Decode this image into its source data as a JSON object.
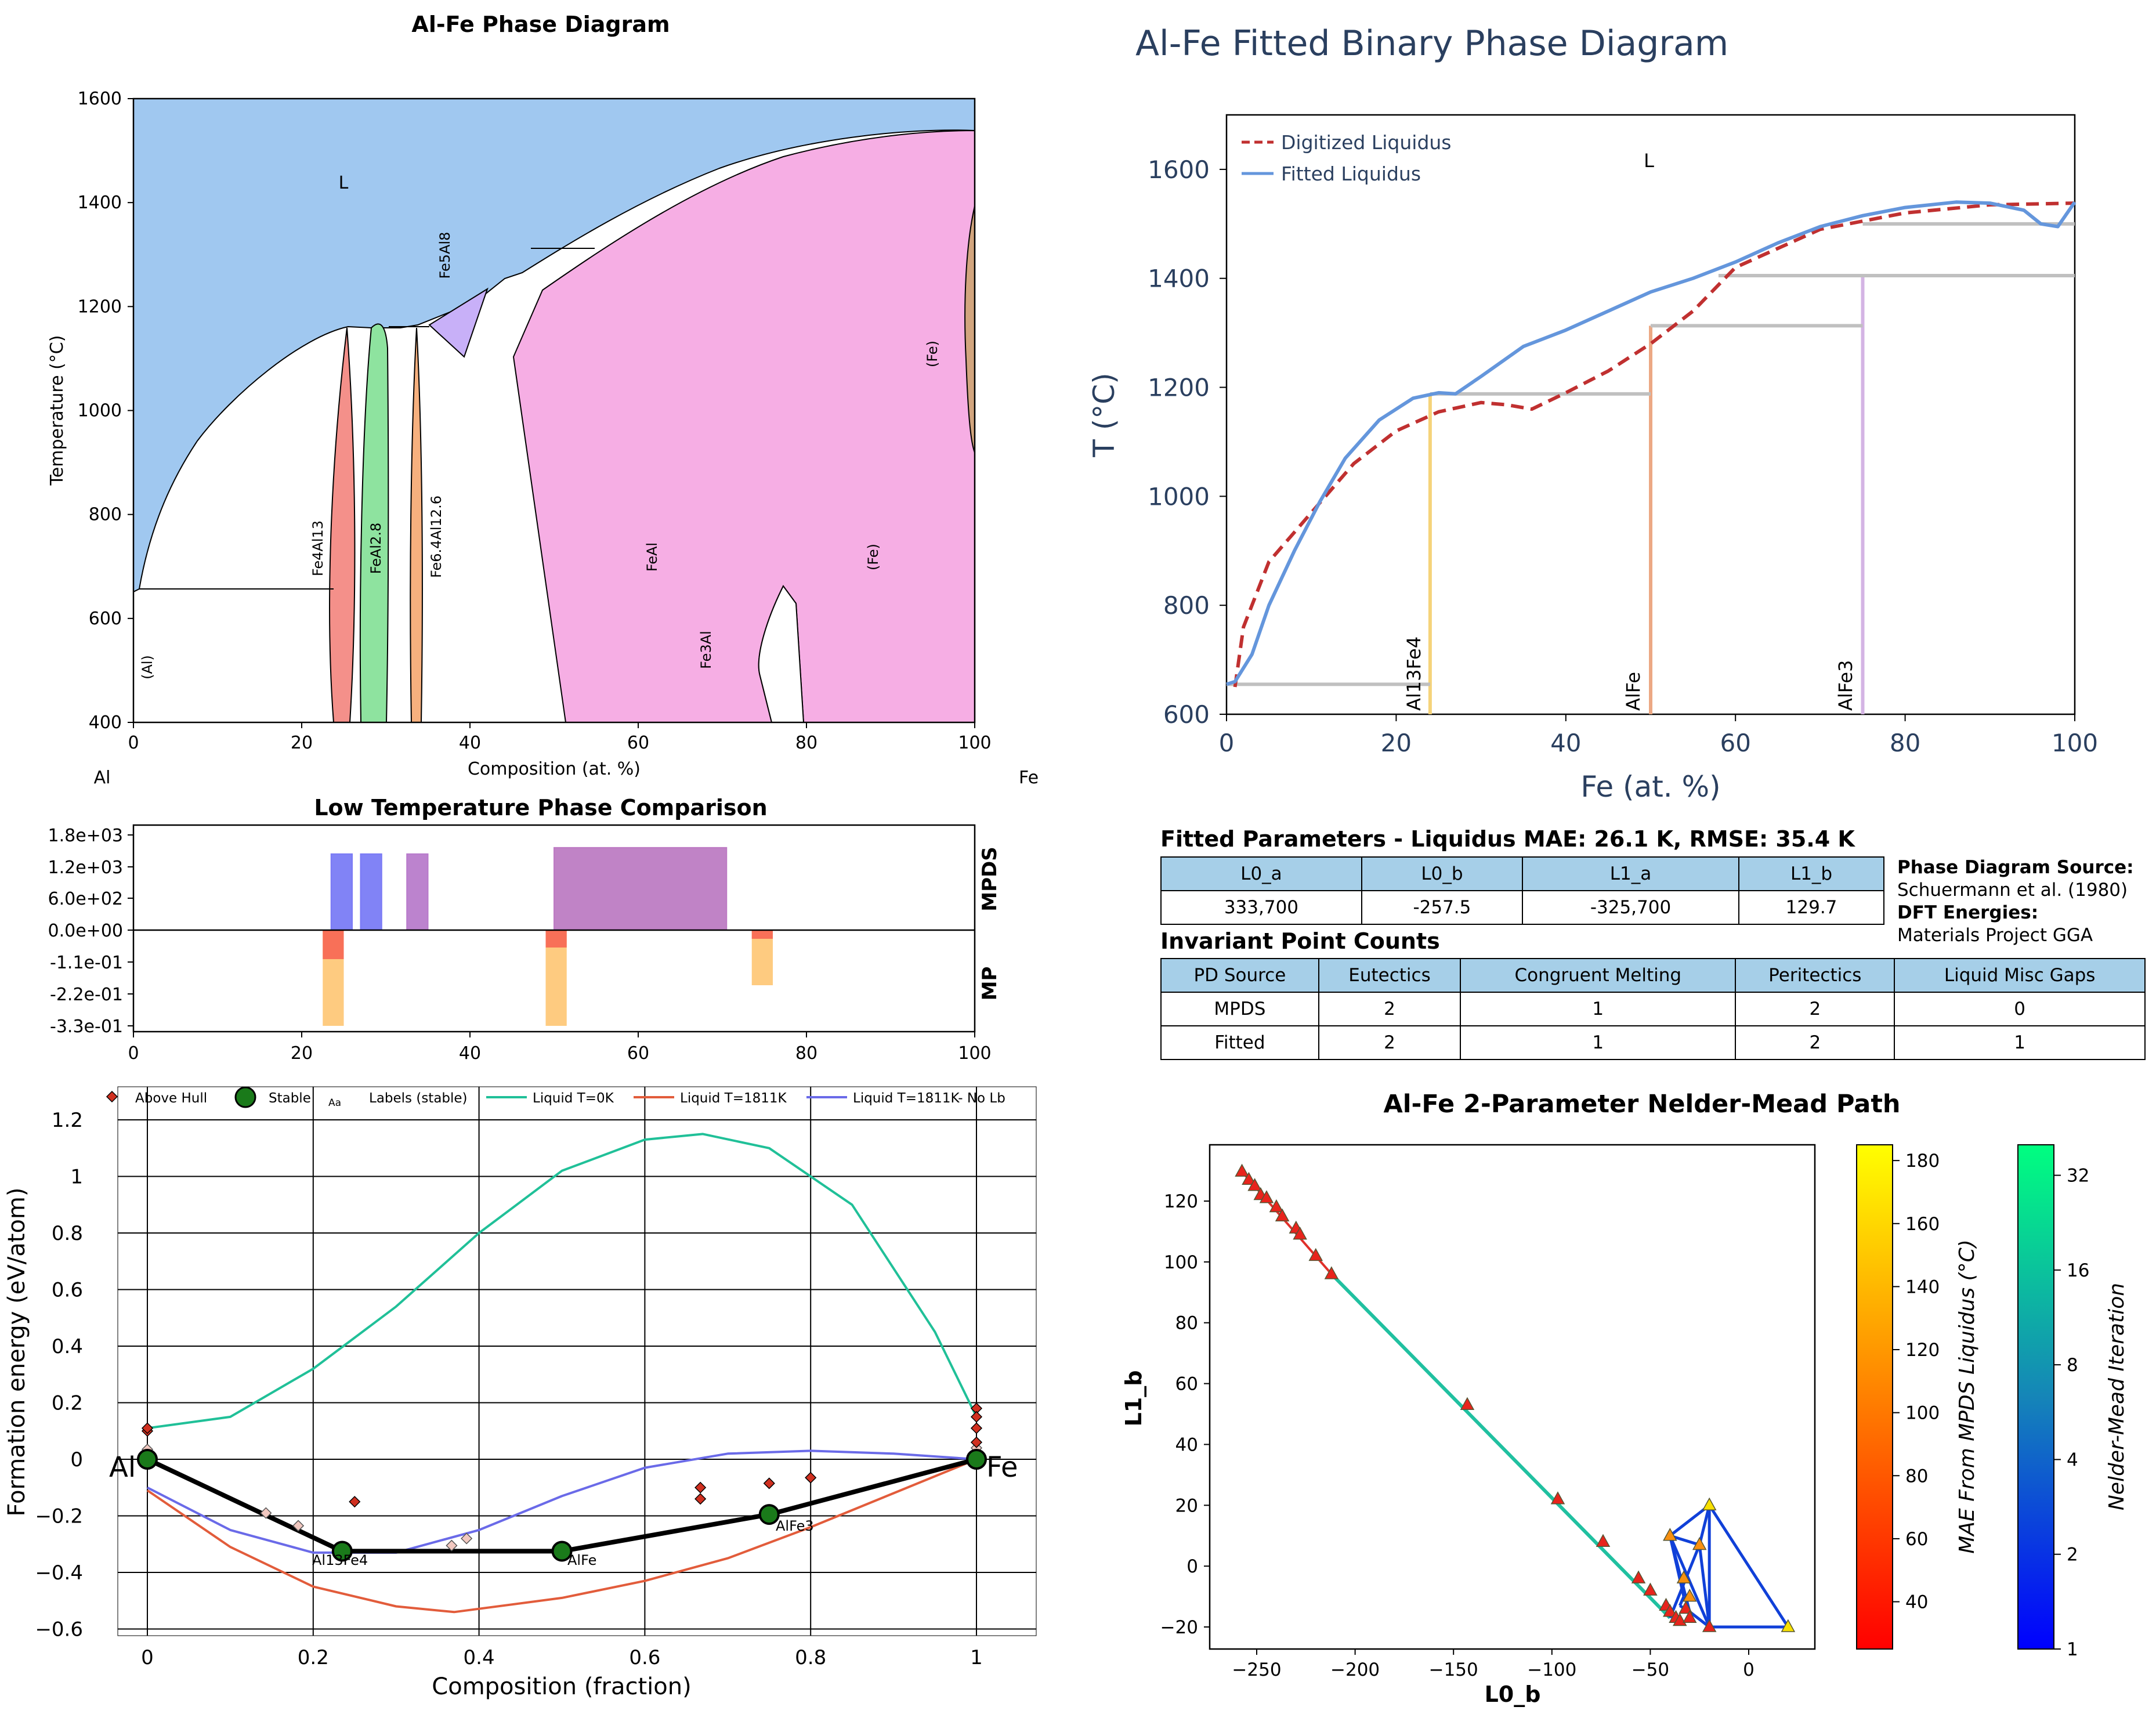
{
  "p1": {
    "title": "Al-Fe Phase Diagram",
    "xlabel": "Composition (at. %)",
    "ylabel": "Temperature (°C)",
    "left_element": "Al",
    "right_element": "Fe",
    "xticks": [
      "0",
      "20",
      "40",
      "60",
      "80",
      "100"
    ],
    "yticks": [
      "400",
      "600",
      "800",
      "1000",
      "1200",
      "1400",
      "1600"
    ],
    "labels": {
      "liquid": "L",
      "al": "(Al)",
      "fe4al13": "Fe4Al13",
      "feal28": "FeAl2.8",
      "fe64al126": "Fe6.4Al12.6",
      "fe5al8": "Fe5Al8",
      "feal": "FeAl",
      "fe3al": "Fe3Al",
      "fe_bcc": "(Fe)",
      "fe_high": "(Fe)"
    }
  },
  "p2": {
    "title": "Low Temperature Phase Comparison",
    "top_label": "MPDS",
    "bottom_label": "MP",
    "yticks": [
      "1.8e+03",
      "1.2e+03",
      "6.0e+02",
      "0.0e+00",
      "-1.1e-01",
      "-2.2e-01",
      "-3.3e-01"
    ],
    "xticks": [
      "0",
      "20",
      "40",
      "60",
      "80",
      "100"
    ]
  },
  "p3": {
    "xlabel": "Composition (fraction)",
    "ylabel": "Formation energy (eV/atom)",
    "xticks": [
      "0",
      "0.2",
      "0.4",
      "0.6",
      "0.8",
      "1"
    ],
    "yticks": [
      "1.2",
      "1",
      "0.8",
      "0.6",
      "0.4",
      "0.2",
      "0",
      "−0.2",
      "−0.4",
      "−0.6"
    ],
    "legend": {
      "above_hull": "Above Hull",
      "stable": "Stable",
      "labels_sample": "Aa",
      "labels": "Labels (stable)",
      "liquid0": "Liquid T=0K",
      "liquid1811": "Liquid T=1811K",
      "liquid_nolb": "Liquid T=1811K- No Lb"
    },
    "end_left": "Al",
    "end_right": "Fe",
    "stable_labels": {
      "a": "Al13Fe4",
      "b": "AlFe",
      "c": "AlFe3"
    }
  },
  "p4": {
    "title": "Al-Fe Fitted Binary Phase Diagram",
    "xlabel": "Fe (at. %)",
    "ylabel": "T (°C)",
    "liquid_label": "L",
    "legend_digitized": "Digitized Liquidus",
    "legend_fitted": "Fitted Liquidus",
    "xticks": [
      "0",
      "20",
      "40",
      "60",
      "80",
      "100"
    ],
    "yticks": [
      "600",
      "800",
      "1000",
      "1200",
      "1400",
      "1600"
    ],
    "phase_labels": {
      "a": "Al13Fe4",
      "b": "AlFe",
      "c": "AlFe3"
    }
  },
  "tables": {
    "params_title": "Fitted Parameters - Liquidus MAE: 26.1 K, RMSE: 35.4 K",
    "params_headers": [
      "L0_a",
      "L0_b",
      "L1_a",
      "L1_b"
    ],
    "params_values": [
      "333,700",
      "-257.5",
      "-325,700",
      "129.7"
    ],
    "source_title": "Phase Diagram Source:",
    "source_value": "Schuermann et al. (1980)",
    "dft_title": "DFT Energies:",
    "dft_value": "Materials Project GGA",
    "inv_title": "Invariant Point Counts",
    "inv_headers": [
      "PD Source",
      "Eutectics",
      "Congruent Melting",
      "Peritectics",
      "Liquid Misc Gaps"
    ],
    "inv_rows": [
      [
        "MPDS",
        "2",
        "1",
        "2",
        "0"
      ],
      [
        "Fitted",
        "2",
        "1",
        "2",
        "1"
      ]
    ]
  },
  "p5": {
    "title": "Al-Fe 2-Parameter Nelder-Mead Path",
    "xlabel": "L0_b",
    "ylabel": "L1_b",
    "xticks": [
      "−250",
      "−200",
      "−150",
      "−100",
      "−50",
      "0"
    ],
    "yticks": [
      "120",
      "100",
      "80",
      "60",
      "40",
      "20",
      "0",
      "−20"
    ],
    "cbar1_label": "MAE From MPDS Liquidus (°C)",
    "cbar1_ticks": [
      "180",
      "160",
      "140",
      "120",
      "100",
      "80",
      "60",
      "40"
    ],
    "cbar2_label": "Nelder-Mead Iteration",
    "cbar2_ticks": [
      "32",
      "16",
      "8",
      "4",
      "2",
      "1"
    ]
  },
  "chart_data": [
    {
      "type": "area",
      "title": "Al-Fe Phase Diagram",
      "xlabel": "Composition (at. %)",
      "ylabel": "Temperature (°C)",
      "xlim": [
        0,
        100
      ],
      "ylim": [
        400,
        1600
      ],
      "liquidus": [
        [
          0,
          660
        ],
        [
          5,
          890
        ],
        [
          10,
          1000
        ],
        [
          15,
          1080
        ],
        [
          20,
          1140
        ],
        [
          24,
          1160
        ],
        [
          30,
          1190
        ],
        [
          40,
          1280
        ],
        [
          50,
          1380
        ],
        [
          60,
          1460
        ],
        [
          70,
          1510
        ],
        [
          80,
          1530
        ],
        [
          90,
          1538
        ],
        [
          100,
          1538
        ]
      ],
      "colors": {
        "liquid": "#a0c8f0",
        "fe4al13": "#f4908a",
        "feal28": "#8ee39f",
        "fe64al126": "#f6b07e",
        "fe5al8": "#c8b0f8",
        "feal": "#f6aee4",
        "fe_high": "#d2a57e"
      }
    },
    {
      "type": "bar",
      "title": "Low Temperature Phase Comparison",
      "xlim": [
        0,
        100
      ],
      "mpds": [
        {
          "x0": 23.5,
          "x1": 26,
          "value": 1440,
          "color": "#7a7cf5"
        },
        {
          "x0": 27,
          "x1": 29.5,
          "value": 1440,
          "color": "#7a7cf5"
        },
        {
          "x0": 32.5,
          "x1": 35,
          "value": 1440,
          "color": "#b87ccb"
        },
        {
          "x0": 50,
          "x1": 70.5,
          "value": 1560,
          "color": "#bd7cc3"
        }
      ],
      "mp": [
        {
          "x0": 22.5,
          "x1": 25,
          "value": -0.1,
          "color": "#f87058"
        },
        {
          "x0": 22.5,
          "x1": 25,
          "value": -0.33,
          "color": "#fecb80"
        },
        {
          "x0": 49,
          "x1": 51.5,
          "value": -0.06,
          "color": "#f87058"
        },
        {
          "x0": 49,
          "x1": 51.5,
          "value": -0.33,
          "color": "#fecb80"
        },
        {
          "x0": 73.5,
          "x1": 76,
          "value": -0.03,
          "color": "#f87058"
        },
        {
          "x0": 73.5,
          "x1": 76,
          "value": -0.19,
          "color": "#fecb80"
        }
      ]
    },
    {
      "type": "scatter",
      "xlabel": "Composition (fraction)",
      "ylabel": "Formation energy (eV/atom)",
      "xlim": [
        -0.05,
        1.07
      ],
      "ylim": [
        -0.62,
        1.22
      ],
      "hull": [
        [
          0,
          0
        ],
        [
          0.235,
          -0.325
        ],
        [
          0.5,
          -0.325
        ],
        [
          0.75,
          -0.195
        ],
        [
          1,
          0
        ]
      ],
      "stable": [
        [
          0,
          0
        ],
        [
          0.235,
          -0.325
        ],
        [
          0.5,
          -0.325
        ],
        [
          0.75,
          -0.195
        ],
        [
          1,
          0
        ]
      ],
      "above_hull": [
        [
          0,
          0.1
        ],
        [
          0,
          0.11
        ],
        [
          0.25,
          -0.15
        ],
        [
          0.667,
          -0.1
        ],
        [
          0.667,
          -0.14
        ],
        [
          0.75,
          -0.085
        ],
        [
          0.8,
          -0.065
        ],
        [
          1,
          0.18
        ],
        [
          1,
          0.15
        ],
        [
          1,
          0.11
        ],
        [
          1,
          0.06
        ]
      ],
      "above_hull_light": [
        [
          0,
          0.035
        ],
        [
          0.143,
          -0.19
        ],
        [
          0.182,
          -0.235
        ],
        [
          0.367,
          -0.305
        ],
        [
          0.385,
          -0.28
        ],
        [
          1,
          0.04
        ]
      ],
      "liquid_0K": [
        [
          0,
          0.11
        ],
        [
          0.1,
          0.15
        ],
        [
          0.2,
          0.32
        ],
        [
          0.3,
          0.54
        ],
        [
          0.4,
          0.8
        ],
        [
          0.5,
          1.02
        ],
        [
          0.6,
          1.13
        ],
        [
          0.67,
          1.15
        ],
        [
          0.75,
          1.1
        ],
        [
          0.85,
          0.9
        ],
        [
          0.95,
          0.45
        ],
        [
          1,
          0.15
        ]
      ],
      "liquid_1811K": [
        [
          0,
          -0.11
        ],
        [
          0.1,
          -0.31
        ],
        [
          0.2,
          -0.45
        ],
        [
          0.3,
          -0.52
        ],
        [
          0.37,
          -0.54
        ],
        [
          0.5,
          -0.49
        ],
        [
          0.6,
          -0.43
        ],
        [
          0.7,
          -0.35
        ],
        [
          0.8,
          -0.24
        ],
        [
          0.9,
          -0.12
        ],
        [
          1,
          0
        ]
      ],
      "liquid_1811K_nolb": [
        [
          0,
          -0.1
        ],
        [
          0.1,
          -0.25
        ],
        [
          0.2,
          -0.33
        ],
        [
          0.3,
          -0.33
        ],
        [
          0.4,
          -0.25
        ],
        [
          0.5,
          -0.13
        ],
        [
          0.6,
          -0.03
        ],
        [
          0.7,
          0.02
        ],
        [
          0.8,
          0.03
        ],
        [
          0.9,
          0.02
        ],
        [
          1,
          0
        ]
      ],
      "colors": {
        "liquid0": "#20c098",
        "liquid1811": "#e25c3b",
        "nolb": "#6a6ae8",
        "above_hull": "#d03020",
        "stable": "#1a7a1a"
      }
    },
    {
      "type": "line",
      "title": "Al-Fe Fitted Binary Phase Diagram",
      "xlabel": "Fe (at. %)",
      "ylabel": "T (°C)",
      "xlim": [
        0,
        100
      ],
      "ylim": [
        600,
        1700
      ],
      "series": [
        {
          "name": "Digitized Liquidus",
          "color": "#c03030",
          "points": [
            [
              1,
              650
            ],
            [
              2,
              760
            ],
            [
              5,
              880
            ],
            [
              10,
              970
            ],
            [
              15,
              1060
            ],
            [
              20,
              1120
            ],
            [
              25,
              1155
            ],
            [
              30,
              1172
            ],
            [
              33,
              1168
            ],
            [
              36,
              1160
            ],
            [
              40,
              1190
            ],
            [
              45,
              1230
            ],
            [
              50,
              1280
            ],
            [
              55,
              1340
            ],
            [
              60,
              1420
            ],
            [
              70,
              1490
            ],
            [
              80,
              1520
            ],
            [
              90,
              1535
            ],
            [
              100,
              1538
            ]
          ]
        },
        {
          "name": "Fitted Liquidus",
          "color": "#6496dc",
          "points": [
            [
              0,
              655
            ],
            [
              1,
              660
            ],
            [
              3,
              710
            ],
            [
              5,
              800
            ],
            [
              8,
              900
            ],
            [
              11,
              990
            ],
            [
              14,
              1070
            ],
            [
              18,
              1140
            ],
            [
              22,
              1180
            ],
            [
              25,
              1190
            ],
            [
              27,
              1188
            ],
            [
              30,
              1220
            ],
            [
              35,
              1275
            ],
            [
              40,
              1305
            ],
            [
              45,
              1340
            ],
            [
              50,
              1375
            ],
            [
              55,
              1400
            ],
            [
              60,
              1430
            ],
            [
              65,
              1465
            ],
            [
              70,
              1495
            ],
            [
              75,
              1515
            ],
            [
              80,
              1530
            ],
            [
              86,
              1540
            ],
            [
              90,
              1538
            ],
            [
              94,
              1525
            ],
            [
              96,
              1500
            ],
            [
              98,
              1495
            ],
            [
              100,
              1540
            ]
          ]
        }
      ],
      "invariant_lines": [
        [
          0,
          24,
          655
        ],
        [
          24,
          50,
          1188
        ],
        [
          50,
          75,
          1313
        ],
        [
          58,
          100,
          1405
        ],
        [
          75,
          100,
          1500
        ]
      ],
      "phase_lines": [
        {
          "x": 24,
          "top": 1188,
          "color": "#f5d37a"
        },
        {
          "x": 50,
          "top": 1313,
          "color": "#eca884"
        },
        {
          "x": 75,
          "top": 1405,
          "color": "#d4b4e4"
        }
      ]
    },
    {
      "type": "scatter",
      "title": "Al-Fe 2-Parameter Nelder-Mead Path",
      "xlabel": "L0_b",
      "ylabel": "L1_b",
      "xlim": [
        -272,
        30
      ],
      "ylim": [
        -27,
        137
      ],
      "path_line": [
        [
          -257.5,
          129.7
        ],
        [
          -212,
          96
        ]
      ],
      "path_line2": [
        [
          -212,
          96
        ],
        [
          -40,
          -17
        ]
      ],
      "triangles": [
        [
          -40,
          10
        ],
        [
          -20,
          20
        ],
        [
          -25,
          7
        ],
        [
          -20,
          -20
        ],
        [
          20,
          -20
        ],
        [
          -30,
          -15
        ],
        [
          -35,
          -13
        ],
        [
          -33,
          -10
        ],
        [
          -40,
          -17
        ]
      ],
      "points_red": [
        [
          -257.5,
          129.7
        ],
        [
          -254,
          127
        ],
        [
          -251,
          125
        ],
        [
          -248,
          122
        ],
        [
          -245,
          121
        ],
        [
          -240,
          118
        ],
        [
          -237,
          115
        ],
        [
          -230,
          111
        ],
        [
          -228,
          109
        ],
        [
          -220,
          102
        ],
        [
          -212,
          96
        ],
        [
          -143,
          53
        ],
        [
          -97,
          22
        ],
        [
          -74,
          8
        ],
        [
          -56,
          -4
        ],
        [
          -50,
          -8
        ],
        [
          -42,
          -13
        ],
        [
          -40,
          -15
        ],
        [
          -37,
          -17
        ],
        [
          -35,
          -18
        ],
        [
          -32,
          -14
        ],
        [
          -30,
          -17
        ],
        [
          -20,
          -20
        ]
      ],
      "points_orange": [
        [
          -40,
          10
        ],
        [
          -33,
          -4
        ],
        [
          -30,
          -10
        ],
        [
          -25,
          7
        ]
      ],
      "points_yellow": [
        [
          -20,
          20
        ],
        [
          20,
          -20
        ]
      ],
      "cbar_mae_range": [
        25,
        185
      ],
      "cbar_iter_range": [
        1,
        40
      ]
    }
  ]
}
